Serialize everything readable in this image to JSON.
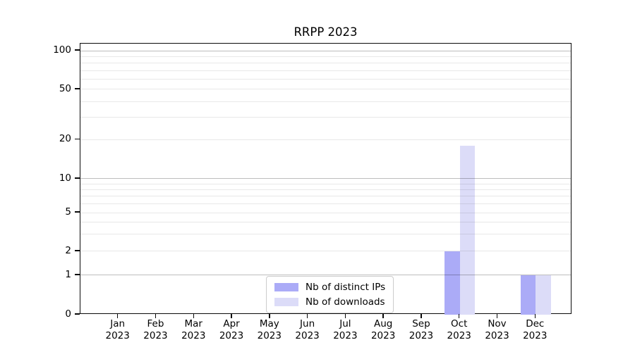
{
  "title": "RRPP 2023",
  "chart_data": {
    "type": "bar",
    "title": "RRPP 2023",
    "categories": [
      "Jan 2023",
      "Feb 2023",
      "Mar 2023",
      "Apr 2023",
      "May 2023",
      "Jun 2023",
      "Jul 2023",
      "Aug 2023",
      "Sep 2023",
      "Oct 2023",
      "Nov 2023",
      "Dec 2023"
    ],
    "series": [
      {
        "name": "Nb of distinct IPs",
        "color": "#ababf7",
        "values": [
          0,
          0,
          0,
          0,
          0,
          0,
          0,
          0,
          0,
          2,
          0,
          1
        ]
      },
      {
        "name": "Nb of downloads",
        "color": "#dcdcf8",
        "values": [
          0,
          0,
          0,
          0,
          0,
          0,
          0,
          0,
          0,
          18,
          0,
          1
        ]
      }
    ],
    "xlabel": "",
    "ylabel": "",
    "yticks": [
      0,
      1,
      2,
      5,
      10,
      20,
      50,
      100
    ],
    "minor_gridline_values": [
      3,
      4,
      6,
      7,
      8,
      9,
      30,
      40,
      60,
      70,
      80,
      90
    ],
    "major_gridline_values": [
      1,
      10,
      100
    ],
    "yscale": "symlog-like",
    "ylim": [
      0,
      115
    ],
    "grid": {
      "major": true,
      "minor": true
    },
    "legend_position": "lower center",
    "legend_title": ""
  }
}
